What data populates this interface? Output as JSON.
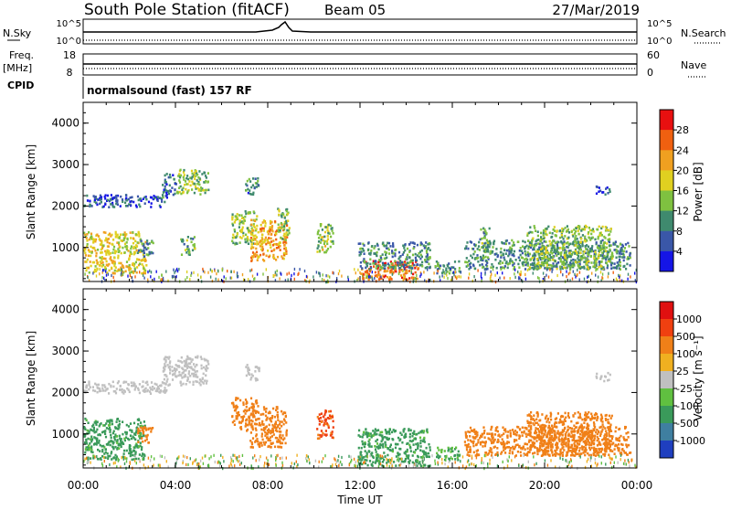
{
  "header": {
    "station": "South Pole Station (fitACF)",
    "beam": "Beam 05",
    "date": "27/Mar/2019"
  },
  "mini_panels": {
    "nsky_label": "N.Sky",
    "nsky_ticks": [
      "10^5",
      "10^0"
    ],
    "nsearch_label": "N.Search",
    "nsearch_ticks": [
      "10^5",
      "10^0"
    ],
    "freq_label": "Freq.",
    "freq_units": "[MHz]",
    "freq_ticks": [
      "18",
      "8"
    ],
    "nave_label": "Nave",
    "nave_ticks": [
      "60",
      "0"
    ],
    "cpid_label": "CPID",
    "cpid_text": "normalsound (fast) 157 RF"
  },
  "chart_data": [
    {
      "type": "heatmap",
      "panel": "power",
      "xlabel": "",
      "ylabel": "Slant Range [km]",
      "ylim": [
        180,
        4500
      ],
      "yticks": [
        "1000",
        "2000",
        "3000",
        "4000"
      ],
      "xlim": [
        0,
        24
      ],
      "colorbar_label": "Power [dB]",
      "colorbar_ticks": [
        "4",
        "8",
        "12",
        "16",
        "20",
        "24",
        "28"
      ],
      "colorbar_colors": [
        "#1515e6",
        "#3a57a8",
        "#3f8a6e",
        "#7fc140",
        "#e0d020",
        "#f0a020",
        "#f06010",
        "#e81010"
      ],
      "blobs": [
        {
          "t0": 0.0,
          "t1": 2.7,
          "r0": 400,
          "r1": 1400,
          "v": 18
        },
        {
          "t0": 0.0,
          "t1": 3.6,
          "r0": 2000,
          "r1": 2300,
          "v": 6
        },
        {
          "t0": 2.3,
          "t1": 3.0,
          "r0": 800,
          "r1": 1200,
          "v": 10
        },
        {
          "t0": 3.4,
          "t1": 4.0,
          "r0": 2200,
          "r1": 2800,
          "v": 8
        },
        {
          "t0": 4.0,
          "t1": 5.4,
          "r0": 2300,
          "r1": 2900,
          "v": 14
        },
        {
          "t0": 4.2,
          "t1": 4.8,
          "r0": 800,
          "r1": 1300,
          "v": 12
        },
        {
          "t0": 6.4,
          "t1": 7.5,
          "r0": 1100,
          "r1": 1900,
          "v": 15
        },
        {
          "t0": 7.2,
          "t1": 8.8,
          "r0": 700,
          "r1": 1700,
          "v": 22
        },
        {
          "t0": 7.0,
          "t1": 7.6,
          "r0": 2300,
          "r1": 2700,
          "v": 8
        },
        {
          "t0": 8.4,
          "t1": 8.9,
          "r0": 1200,
          "r1": 2000,
          "v": 14
        },
        {
          "t0": 10.1,
          "t1": 10.8,
          "r0": 900,
          "r1": 1600,
          "v": 16
        },
        {
          "t0": 12.0,
          "t1": 14.5,
          "r0": 250,
          "r1": 700,
          "v": 26
        },
        {
          "t0": 11.9,
          "t1": 15.0,
          "r0": 500,
          "r1": 1150,
          "v": 10
        },
        {
          "t0": 15.2,
          "t1": 16.3,
          "r0": 400,
          "r1": 700,
          "v": 10
        },
        {
          "t0": 16.5,
          "t1": 23.7,
          "r0": 500,
          "r1": 1200,
          "v": 10
        },
        {
          "t0": 17.1,
          "t1": 17.6,
          "r0": 900,
          "r1": 1500,
          "v": 12
        },
        {
          "t0": 19.2,
          "t1": 22.9,
          "r0": 500,
          "r1": 1550,
          "v": 14
        },
        {
          "t0": 22.2,
          "t1": 22.8,
          "r0": 2300,
          "r1": 2500,
          "v": 6
        }
      ]
    },
    {
      "type": "heatmap",
      "panel": "velocity",
      "xlabel": "Time UT",
      "ylabel": "Slant Range [km]",
      "ylim": [
        180,
        4500
      ],
      "yticks": [
        "1000",
        "2000",
        "3000",
        "4000"
      ],
      "xlim": [
        0,
        24
      ],
      "xticks": [
        "00:00",
        "04:00",
        "08:00",
        "12:00",
        "16:00",
        "20:00",
        "00:00"
      ],
      "colorbar_label": "Velocity [m s⁻¹]",
      "colorbar_ticks": [
        "1000",
        "500",
        "100",
        "25",
        "-25",
        "-100",
        "-500",
        "-1000"
      ],
      "colorbar_colors": [
        "#1f3fbf",
        "#3f7fa0",
        "#3a9a5a",
        "#60c040",
        "#c0c0c0",
        "#f0b020",
        "#f08018",
        "#f04010",
        "#e01010"
      ],
      "blobs": [
        {
          "t0": 0.0,
          "t1": 2.7,
          "r0": 400,
          "r1": 1400,
          "v": 150
        },
        {
          "t0": 0.0,
          "t1": 3.6,
          "r0": 2000,
          "r1": 2300,
          "v": 0
        },
        {
          "t0": 3.4,
          "t1": 5.4,
          "r0": 2200,
          "r1": 2900,
          "v": 0
        },
        {
          "t0": 2.3,
          "t1": 3.0,
          "r0": 800,
          "r1": 1200,
          "v": -200
        },
        {
          "t0": 6.4,
          "t1": 7.5,
          "r0": 1100,
          "r1": 1900,
          "v": -200
        },
        {
          "t0": 7.2,
          "t1": 8.8,
          "r0": 700,
          "r1": 1700,
          "v": -300
        },
        {
          "t0": 7.0,
          "t1": 7.6,
          "r0": 2300,
          "r1": 2700,
          "v": 0
        },
        {
          "t0": 10.1,
          "t1": 10.8,
          "r0": 900,
          "r1": 1600,
          "v": -600
        },
        {
          "t0": 11.9,
          "t1": 15.0,
          "r0": 250,
          "r1": 1150,
          "v": 150
        },
        {
          "t0": 15.2,
          "t1": 16.3,
          "r0": 400,
          "r1": 700,
          "v": 100
        },
        {
          "t0": 16.5,
          "t1": 23.7,
          "r0": 500,
          "r1": 1200,
          "v": -200
        },
        {
          "t0": 19.2,
          "t1": 22.9,
          "r0": 500,
          "r1": 1550,
          "v": -250
        },
        {
          "t0": 22.2,
          "t1": 22.8,
          "r0": 2300,
          "r1": 2500,
          "v": 0
        }
      ]
    }
  ]
}
